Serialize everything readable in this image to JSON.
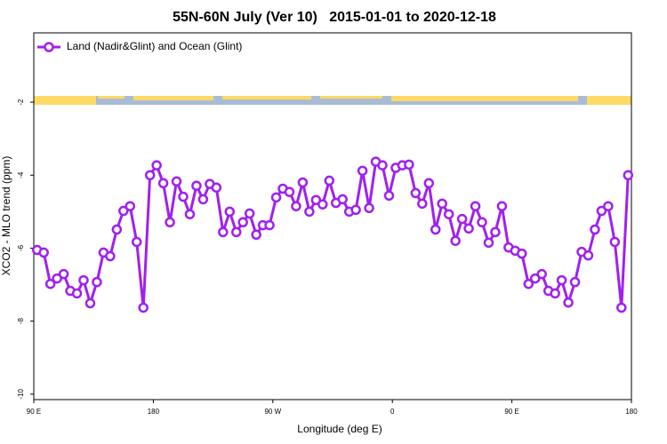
{
  "chart_data": {
    "type": "line",
    "title": "55N-60N July (Ver 10)   2015-01-01 to 2020-12-18",
    "x_label": "Longitude (deg E)",
    "y_label": "XCO2 - MLO trend (ppm)",
    "legend": "top-left",
    "xlim": [
      90,
      540
    ],
    "xticks": [
      {
        "value": 90,
        "label": "90 E"
      },
      {
        "value": 180,
        "label": "180"
      },
      {
        "value": 270,
        "label": "90 W"
      },
      {
        "value": 360,
        "label": "0"
      },
      {
        "value": 450,
        "label": "90 E"
      },
      {
        "value": 540,
        "label": "180"
      }
    ],
    "ylim": [
      -10.15,
      -0.1
    ],
    "yticks": [
      -2,
      -4,
      -6,
      -8,
      -10
    ],
    "x": [
      92.5,
      97.5,
      102.5,
      107.5,
      112.5,
      117.5,
      122.5,
      127.5,
      132.5,
      137.5,
      142.5,
      147.5,
      152.5,
      157.5,
      162.5,
      167.5,
      172.5,
      177.5,
      182.5,
      187.5,
      192.5,
      197.5,
      202.5,
      207.5,
      212.5,
      217.5,
      222.5,
      227.5,
      232.5,
      237.5,
      242.5,
      247.5,
      252.5,
      257.5,
      262.5,
      267.5,
      272.5,
      277.5,
      282.5,
      287.5,
      292.5,
      297.5,
      302.5,
      307.5,
      312.5,
      317.5,
      322.5,
      327.5,
      332.5,
      337.5,
      342.5,
      347.5,
      352.5,
      357.5,
      362.5,
      367.5,
      372.5,
      377.5,
      382.5,
      387.5,
      392.5,
      397.5,
      402.5,
      407.5,
      412.5,
      417.5,
      422.5,
      427.5,
      432.5,
      437.5,
      442.5,
      447.5,
      452.5,
      457.5,
      462.5,
      467.5,
      472.5,
      477.5,
      482.5,
      487.5,
      492.5,
      497.5,
      502.5,
      507.5,
      512.5,
      517.5,
      522.5,
      527.5,
      532.5,
      537.5
    ],
    "series": [
      {
        "name": "Land (Nadir&Glint) and Ocean (Glint)",
        "color": "#a020f0",
        "values": [
          -6.05,
          -6.12,
          -6.98,
          -6.83,
          -6.71,
          -7.17,
          -7.24,
          -6.88,
          -7.51,
          -6.93,
          -6.12,
          -6.22,
          -5.49,
          -4.98,
          -4.85,
          -5.83,
          -7.63,
          -4.0,
          -3.73,
          -4.22,
          -5.29,
          -4.17,
          -4.59,
          -5.07,
          -4.29,
          -4.66,
          -4.24,
          -4.34,
          -5.56,
          -5.0,
          -5.56,
          -5.29,
          -5.05,
          -5.63,
          -5.37,
          -5.37,
          -4.61,
          -4.37,
          -4.46,
          -4.85,
          -4.2,
          -5.0,
          -4.68,
          -4.8,
          -4.15,
          -4.76,
          -4.66,
          -5.0,
          -4.95,
          -3.88,
          -4.9,
          -3.63,
          -3.73,
          -4.56,
          -3.8,
          -3.73,
          -3.71,
          -4.49,
          -4.78,
          -4.22,
          -5.49,
          -4.78,
          -5.07,
          -5.8,
          -5.2,
          -5.46,
          -4.85,
          -5.29,
          -5.85,
          -5.56,
          -4.85,
          -5.98,
          -6.07,
          -6.15,
          -6.98,
          -6.83,
          -6.71,
          -7.17,
          -7.24,
          -6.88,
          -7.49,
          -6.93,
          -6.1,
          -6.2,
          -5.49,
          -4.98,
          -4.85,
          -5.83,
          -7.63,
          -4.0
        ]
      }
    ]
  }
}
